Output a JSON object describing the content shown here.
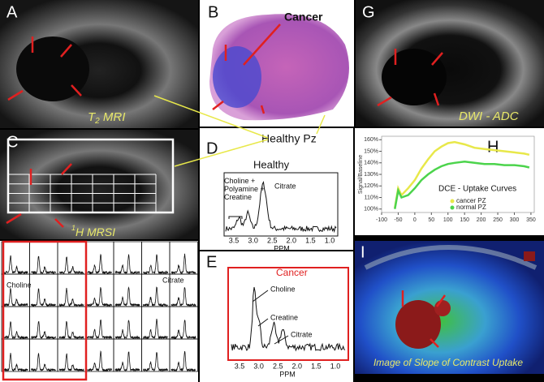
{
  "a": {
    "letter": "A",
    "title": [
      "T",
      "2",
      " MRI"
    ]
  },
  "b": {
    "letter": "B",
    "cancer": "Cancer",
    "healthy": "Healthy Pz"
  },
  "c": {
    "letter": "C",
    "title": [
      "1",
      "H MRSI"
    ]
  },
  "d": {
    "letter": "D",
    "title": "Healthy",
    "peaks": [
      "Choline +",
      "Polyamine +",
      "Creatine"
    ],
    "citrate": "Citrate",
    "xticks": [
      "3.5",
      "3.0",
      "2.5",
      "2.0",
      "1.5",
      "1.0"
    ],
    "xlabel": "PPM"
  },
  "e": {
    "letter": "E",
    "title": "Cancer",
    "choline": "Choline",
    "creatine": "Creatine",
    "citrate": "Citrate",
    "xticks": [
      "3.5",
      "3.0",
      "2.5",
      "2.0",
      "1.5",
      "1.0"
    ],
    "xlabel": "PPM"
  },
  "g": {
    "letter": "G",
    "title": "DWI - ADC"
  },
  "grid": {
    "choline": "Choline",
    "citrate": "Citrate"
  },
  "h_letter": "H",
  "chart_data": {
    "type": "line",
    "title": "DCE - Uptake Curves",
    "y_label": "Signal/Baseline",
    "x": [
      -60,
      -50,
      -40,
      -20,
      0,
      20,
      40,
      60,
      80,
      100,
      120,
      150,
      180,
      210,
      240,
      270,
      300,
      330,
      345
    ],
    "series": [
      {
        "name": "cancer PZ",
        "color": "#e8e84a",
        "values": [
          101,
          118,
          112,
          118,
          125,
          135,
          143,
          150,
          154,
          157,
          158,
          156,
          153,
          152,
          151,
          150,
          149,
          148,
          147
        ]
      },
      {
        "name": "normal PZ",
        "color": "#4cd44c",
        "values": [
          100,
          116,
          110,
          112,
          118,
          125,
          130,
          134,
          137,
          139,
          140,
          141,
          140,
          139,
          139,
          138,
          138,
          137,
          136
        ]
      }
    ],
    "xlim": [
      -100,
      360
    ],
    "ylim": [
      97,
      163
    ],
    "xticks": [
      -100,
      -50,
      0,
      50,
      100,
      150,
      200,
      250,
      300,
      350
    ],
    "yticks": [
      {
        "value": 100,
        "label": "100%"
      },
      {
        "value": 110,
        "label": "110%"
      },
      {
        "value": 120,
        "label": "120%"
      },
      {
        "value": 130,
        "label": "130%"
      },
      {
        "value": 140,
        "label": "140%"
      },
      {
        "value": 150,
        "label": "150%"
      },
      {
        "value": 160,
        "label": "160%"
      }
    ],
    "legend": "lower right"
  },
  "i": {
    "letter": "I",
    "title": "Image of Slope of Contrast Uptake"
  }
}
